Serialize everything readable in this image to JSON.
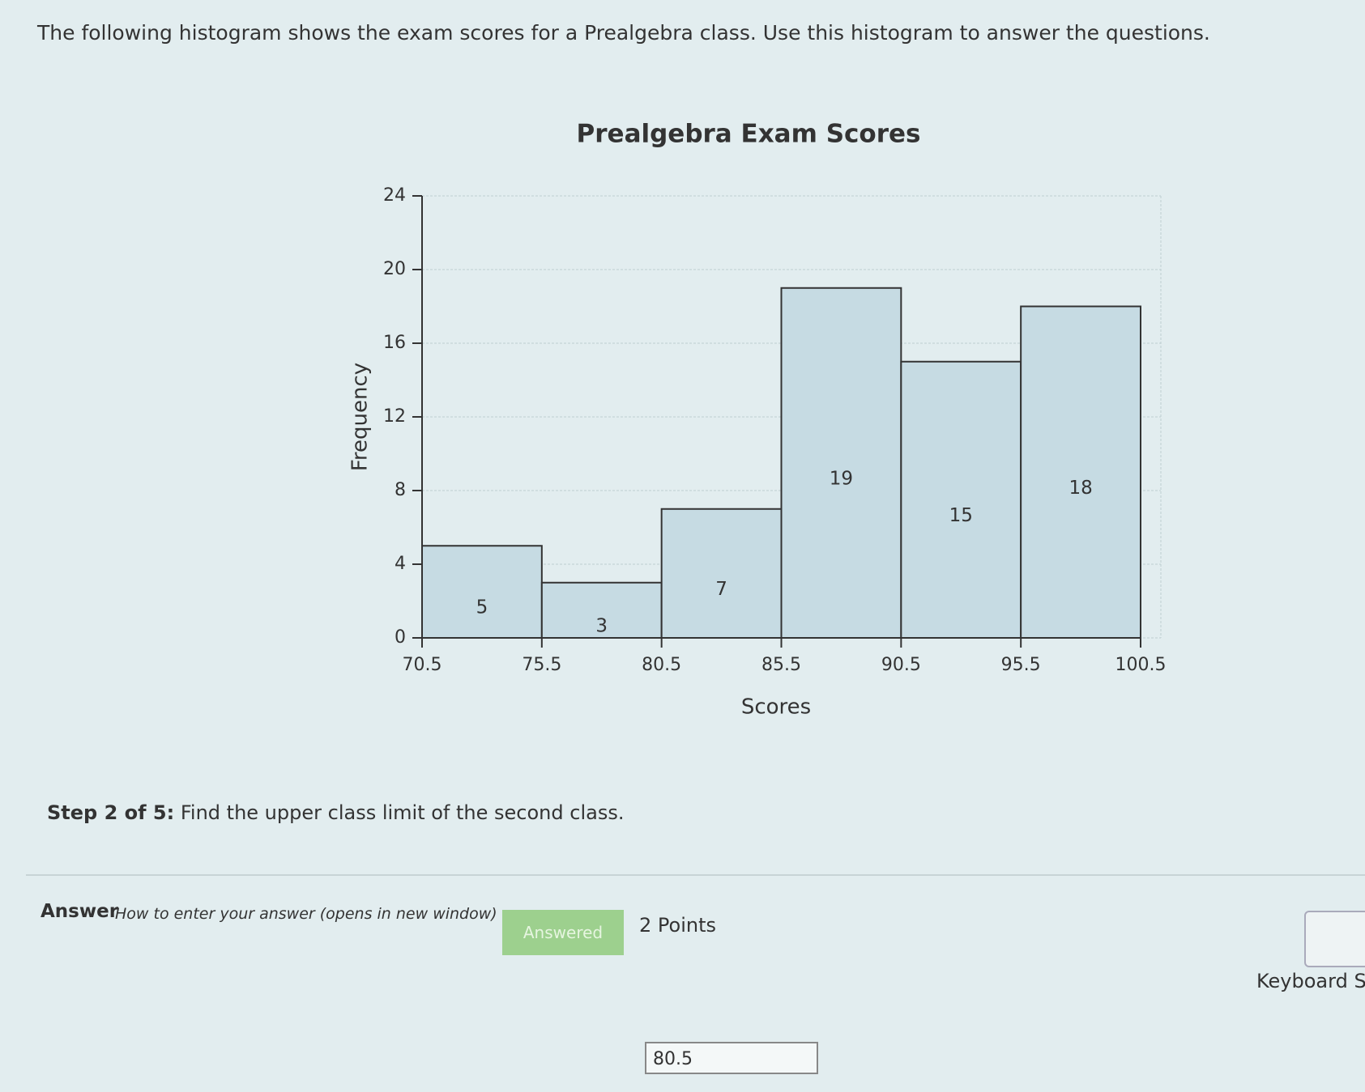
{
  "question": "The following histogram shows the exam scores for a Prealgebra class. Use this histogram to answer the questions.",
  "chart_data": {
    "type": "histogram",
    "title": "Prealgebra Exam Scores",
    "x_label": "Scores",
    "y_label": "Frequency",
    "bins": [
      70.5,
      75.5,
      80.5,
      85.5,
      90.5,
      95.5,
      100.5
    ],
    "values": [
      5,
      3,
      7,
      19,
      15,
      18
    ],
    "color": "#c6dbe3",
    "xlim": [
      70.5,
      100.5
    ],
    "xticks": [
      70.5,
      75.5,
      80.5,
      85.5,
      90.5,
      95.5,
      100.5
    ],
    "ylim": [
      0,
      24
    ],
    "yticks": [
      0,
      4,
      8,
      12,
      16,
      20,
      24
    ],
    "grid": true
  },
  "step": {
    "label": "Step 2 of 5:",
    "text": "Find the upper class limit of the second class."
  },
  "answer": {
    "label": "Answer",
    "help_link": "How to enter your answer (opens in new window)",
    "button": "Answered",
    "points": "2 Points",
    "input": "80.5"
  },
  "keyboard": "Keyboard S"
}
